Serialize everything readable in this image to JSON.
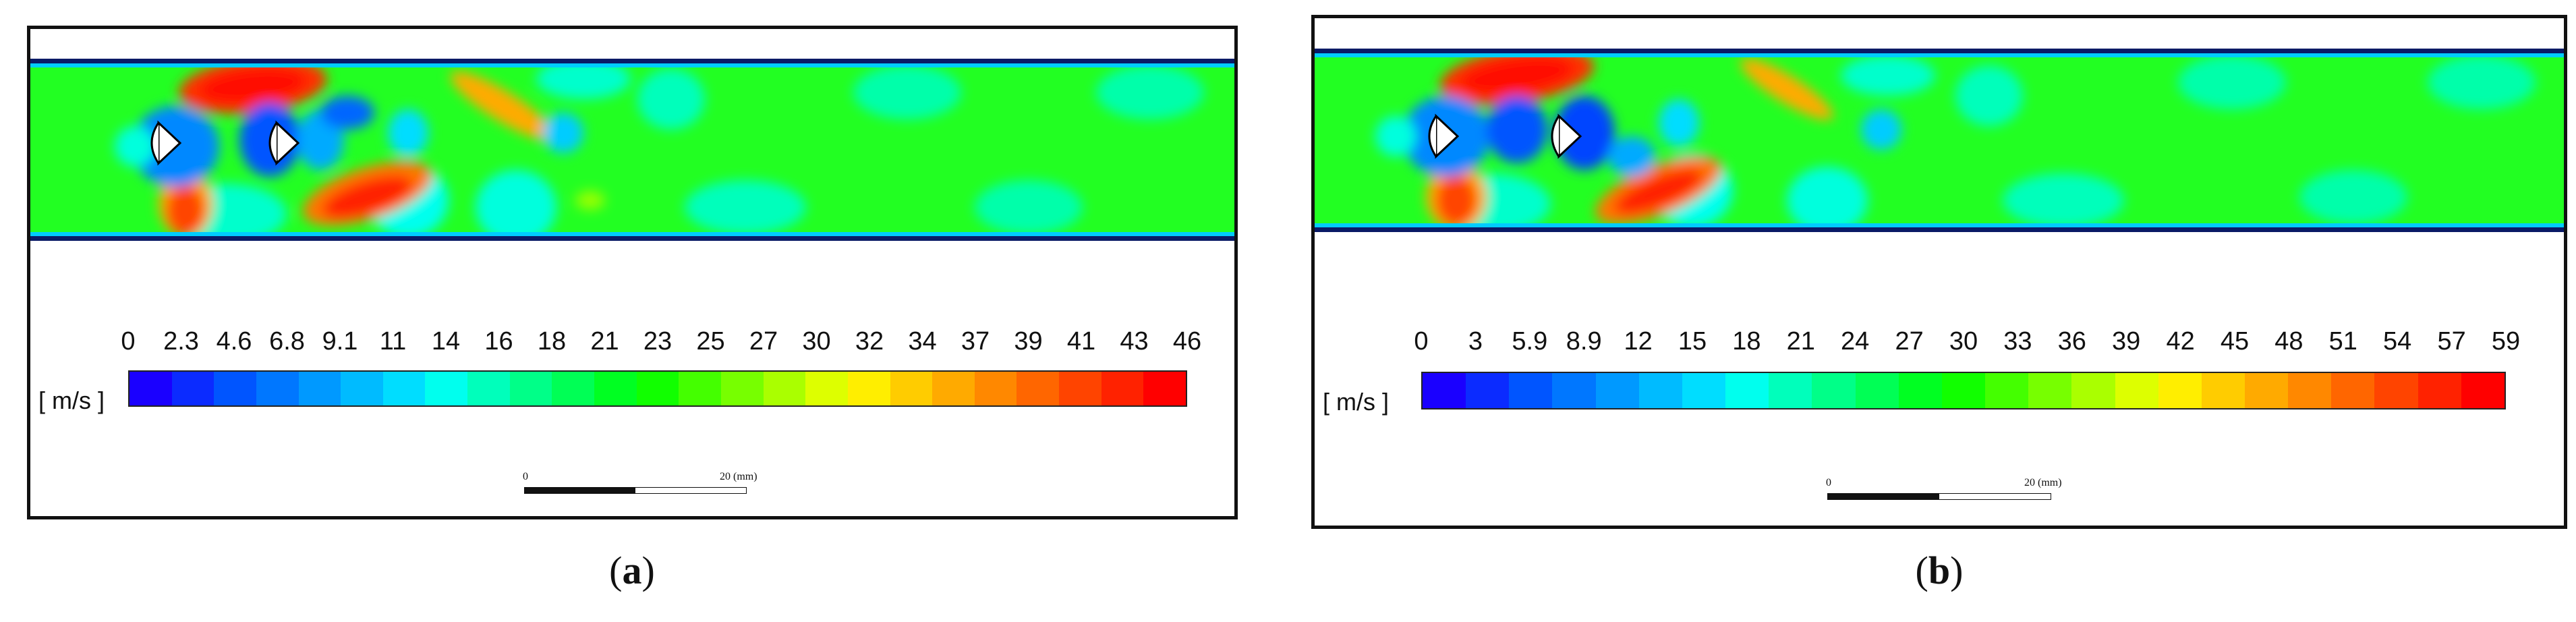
{
  "panels": [
    {
      "id": "a",
      "caption_open": "(",
      "caption_letter": "a",
      "caption_close": ")",
      "units": "[ m/s ]",
      "ticks": [
        "0",
        "2.3",
        "4.6",
        "6.8",
        "9.1",
        "11",
        "14",
        "16",
        "18",
        "21",
        "23",
        "25",
        "27",
        "30",
        "32",
        "34",
        "37",
        "39",
        "41",
        "43",
        "46"
      ],
      "scale_bar": {
        "start": "0",
        "end": "20 (mm)"
      }
    },
    {
      "id": "b",
      "caption_open": "(",
      "caption_letter": "b",
      "caption_close": ")",
      "units": "[ m/s ]",
      "ticks": [
        "0",
        "3",
        "5.9",
        "8.9",
        "12",
        "15",
        "18",
        "21",
        "24",
        "27",
        "30",
        "33",
        "36",
        "39",
        "42",
        "45",
        "48",
        "51",
        "54",
        "57",
        "59"
      ],
      "scale_bar": {
        "start": "0",
        "end": "20 (mm)"
      }
    }
  ],
  "colormap": [
    "#1a00ff",
    "#0b2bff",
    "#0055ff",
    "#0077ff",
    "#0099ff",
    "#00bbff",
    "#00ddff",
    "#00ffee",
    "#00ffbb",
    "#00ff88",
    "#00ff55",
    "#00ff22",
    "#11ff00",
    "#44ff00",
    "#77ff00",
    "#aaff00",
    "#ddff00",
    "#ffee00",
    "#ffcc00",
    "#ffaa00",
    "#ff8800",
    "#ff6600",
    "#ff4400",
    "#ff2200",
    "#ff0000"
  ],
  "colors": {
    "field_green": "#22ff22",
    "wall": "#0a1a66",
    "max": "#ff1100",
    "min": "#0019ff"
  }
}
